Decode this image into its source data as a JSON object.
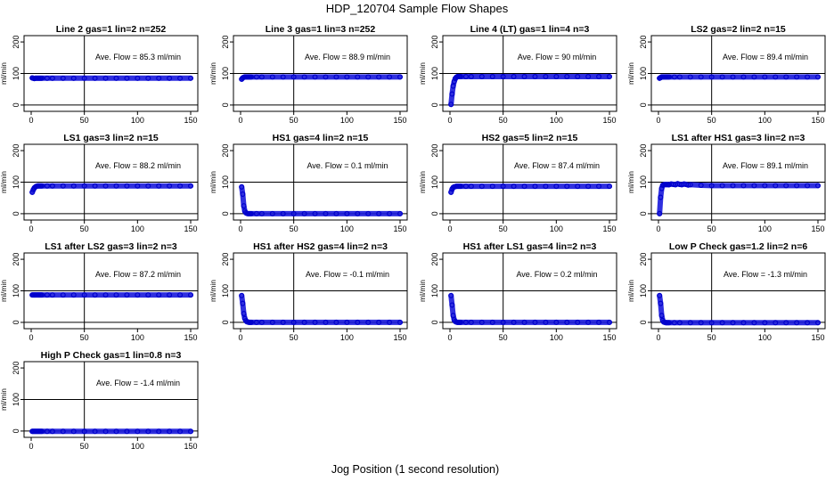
{
  "figure": {
    "title": "HDP_120704  Sample Flow Shapes",
    "xlabel": "Jog Position (1 second resolution)"
  },
  "chart_data": [
    {
      "type": "scatter",
      "title": "Line 2 gas=1 lin=2 n=252",
      "ylabel": "ml/min",
      "xlim": [
        0,
        150
      ],
      "ylim": [
        -20,
        220
      ],
      "xticks": [
        0,
        50,
        100,
        150
      ],
      "yticks": [
        0,
        100,
        200
      ],
      "hlines": [
        0,
        100
      ],
      "vline": 50,
      "annotation": "Ave. Flow =  85.3  ml/min",
      "x": [
        1,
        2,
        3,
        4,
        5,
        6,
        7,
        8,
        9,
        10,
        15,
        20,
        30,
        40,
        50,
        60,
        70,
        80,
        90,
        100,
        110,
        120,
        130,
        140,
        150
      ],
      "y": [
        86,
        85,
        84,
        85,
        85,
        85,
        85,
        85,
        85,
        85,
        85,
        85,
        85,
        85,
        85,
        85,
        85,
        85,
        85,
        85,
        85,
        85,
        85,
        85,
        85
      ]
    },
    {
      "type": "scatter",
      "title": "Line 3 gas=1 lin=3 n=252",
      "ylabel": "ml/min",
      "xlim": [
        0,
        150
      ],
      "ylim": [
        -20,
        220
      ],
      "xticks": [
        0,
        50,
        100,
        150
      ],
      "yticks": [
        0,
        100,
        200
      ],
      "hlines": [
        0,
        100
      ],
      "vline": 50,
      "annotation": "Ave. Flow =  88.9  ml/min",
      "x": [
        1,
        2,
        3,
        4,
        5,
        6,
        7,
        8,
        9,
        10,
        15,
        20,
        30,
        40,
        50,
        60,
        70,
        80,
        90,
        100,
        110,
        120,
        130,
        140,
        150
      ],
      "y": [
        82,
        86,
        88,
        89,
        89,
        89,
        89,
        89,
        89,
        89,
        89,
        89,
        89,
        89,
        89,
        89,
        89,
        89,
        89,
        89,
        89,
        89,
        89,
        89,
        89
      ]
    },
    {
      "type": "scatter",
      "title": "Line 4 (LT) gas=1 lin=4 n=3",
      "ylabel": "ml/min",
      "xlim": [
        0,
        150
      ],
      "ylim": [
        -20,
        220
      ],
      "xticks": [
        0,
        50,
        100,
        150
      ],
      "yticks": [
        0,
        100,
        200
      ],
      "hlines": [
        0,
        100
      ],
      "vline": 50,
      "annotation": "Ave. Flow =  90  ml/min",
      "x": [
        1,
        2,
        3,
        4,
        5,
        6,
        7,
        8,
        9,
        10,
        15,
        20,
        30,
        40,
        50,
        60,
        70,
        80,
        90,
        100,
        110,
        120,
        130,
        140,
        150
      ],
      "y": [
        2,
        35,
        60,
        75,
        84,
        88,
        90,
        90,
        90,
        90,
        90,
        90,
        90,
        90,
        90,
        90,
        90,
        90,
        90,
        90,
        90,
        90,
        90,
        90,
        90
      ]
    },
    {
      "type": "scatter",
      "title": "LS2 gas=2 lin=2 n=15",
      "ylabel": "ml/min",
      "xlim": [
        0,
        150
      ],
      "ylim": [
        -20,
        220
      ],
      "xticks": [
        0,
        50,
        100,
        150
      ],
      "yticks": [
        0,
        100,
        200
      ],
      "hlines": [
        0,
        100
      ],
      "vline": 50,
      "annotation": "Ave. Flow =  89.4  ml/min",
      "x": [
        1,
        2,
        3,
        4,
        5,
        6,
        7,
        8,
        9,
        10,
        15,
        20,
        30,
        40,
        50,
        60,
        70,
        80,
        90,
        100,
        110,
        120,
        130,
        140,
        150
      ],
      "y": [
        85,
        87,
        89,
        89,
        89,
        89,
        89,
        89,
        89,
        89,
        89,
        89,
        89,
        89,
        89,
        89,
        89,
        89,
        89,
        89,
        89,
        89,
        89,
        89,
        89
      ]
    },
    {
      "type": "scatter",
      "title": "LS1 gas=3 lin=2 n=15",
      "ylabel": "ml/min",
      "xlim": [
        0,
        150
      ],
      "ylim": [
        -20,
        220
      ],
      "xticks": [
        0,
        50,
        100,
        150
      ],
      "yticks": [
        0,
        100,
        200
      ],
      "hlines": [
        0,
        100
      ],
      "vline": 50,
      "annotation": "Ave. Flow =  88.2  ml/min",
      "x": [
        1,
        2,
        3,
        4,
        5,
        6,
        7,
        8,
        9,
        10,
        15,
        20,
        30,
        40,
        50,
        60,
        70,
        80,
        90,
        100,
        110,
        120,
        130,
        140,
        150
      ],
      "y": [
        68,
        76,
        82,
        85,
        87,
        88,
        88,
        88,
        88,
        88,
        88,
        88,
        88,
        88,
        88,
        88,
        88,
        88,
        88,
        88,
        88,
        88,
        88,
        88,
        88
      ]
    },
    {
      "type": "scatter",
      "title": "HS1 gas=4 lin=2 n=15",
      "ylabel": "ml/min",
      "xlim": [
        0,
        150
      ],
      "ylim": [
        -20,
        220
      ],
      "xticks": [
        0,
        50,
        100,
        150
      ],
      "yticks": [
        0,
        100,
        200
      ],
      "hlines": [
        0,
        100
      ],
      "vline": 50,
      "annotation": "Ave. Flow =  0.1  ml/min",
      "x": [
        1,
        2,
        3,
        4,
        5,
        6,
        7,
        8,
        9,
        10,
        15,
        20,
        30,
        40,
        50,
        60,
        70,
        80,
        90,
        100,
        110,
        120,
        130,
        140,
        150
      ],
      "y": [
        85,
        62,
        25,
        8,
        3,
        1,
        0,
        0,
        0,
        0,
        0,
        0,
        0,
        0,
        0,
        0,
        0,
        0,
        0,
        0,
        0,
        0,
        0,
        0,
        0
      ]
    },
    {
      "type": "scatter",
      "title": "HS2 gas=5 lin=2 n=15",
      "ylabel": "ml/min",
      "xlim": [
        0,
        150
      ],
      "ylim": [
        -20,
        220
      ],
      "xticks": [
        0,
        50,
        100,
        150
      ],
      "yticks": [
        0,
        100,
        200
      ],
      "hlines": [
        0,
        100
      ],
      "vline": 50,
      "annotation": "Ave. Flow =  87.4  ml/min",
      "x": [
        1,
        2,
        3,
        4,
        5,
        6,
        7,
        8,
        9,
        10,
        15,
        20,
        30,
        40,
        50,
        60,
        70,
        80,
        90,
        100,
        110,
        120,
        130,
        140,
        150
      ],
      "y": [
        68,
        78,
        83,
        85,
        86,
        87,
        87,
        87,
        87,
        87,
        87,
        87,
        87,
        87,
        87,
        87,
        87,
        87,
        87,
        87,
        87,
        87,
        87,
        87,
        87
      ]
    },
    {
      "type": "scatter",
      "title": "LS1 after HS1 gas=3 lin=2 n=3",
      "ylabel": "ml/min",
      "xlim": [
        0,
        150
      ],
      "ylim": [
        -20,
        220
      ],
      "xticks": [
        0,
        50,
        100,
        150
      ],
      "yticks": [
        0,
        100,
        200
      ],
      "hlines": [
        0,
        100
      ],
      "vline": 50,
      "annotation": "Ave. Flow =  89.1  ml/min",
      "x": [
        1,
        2,
        3,
        4,
        5,
        6,
        7,
        8,
        9,
        10,
        12,
        14,
        16,
        18,
        20,
        22,
        24,
        26,
        28,
        30,
        40,
        50,
        60,
        70,
        80,
        90,
        100,
        110,
        120,
        130,
        140,
        150
      ],
      "y": [
        0,
        52,
        80,
        90,
        92,
        93,
        92,
        93,
        92,
        92,
        94,
        93,
        92,
        95,
        93,
        92,
        94,
        93,
        91,
        92,
        90,
        89,
        89,
        89,
        89,
        89,
        89,
        89,
        89,
        89,
        89,
        89
      ]
    },
    {
      "type": "scatter",
      "title": "LS1 after LS2 gas=3 lin=2 n=3",
      "ylabel": "ml/min",
      "xlim": [
        0,
        150
      ],
      "ylim": [
        -20,
        220
      ],
      "xticks": [
        0,
        50,
        100,
        150
      ],
      "yticks": [
        0,
        100,
        200
      ],
      "hlines": [
        0,
        100
      ],
      "vline": 50,
      "annotation": "Ave. Flow =  87.2  ml/min",
      "x": [
        1,
        2,
        3,
        4,
        5,
        6,
        7,
        8,
        9,
        10,
        15,
        20,
        30,
        40,
        50,
        60,
        70,
        80,
        90,
        100,
        110,
        120,
        130,
        140,
        150
      ],
      "y": [
        87,
        87,
        87,
        87,
        87,
        87,
        87,
        87,
        87,
        87,
        87,
        87,
        87,
        87,
        87,
        87,
        87,
        87,
        87,
        87,
        87,
        87,
        87,
        87,
        87
      ]
    },
    {
      "type": "scatter",
      "title": "HS1 after HS2 gas=4 lin=2 n=3",
      "ylabel": "ml/min",
      "xlim": [
        0,
        150
      ],
      "ylim": [
        -20,
        220
      ],
      "xticks": [
        0,
        50,
        100,
        150
      ],
      "yticks": [
        0,
        100,
        200
      ],
      "hlines": [
        0,
        100
      ],
      "vline": 50,
      "annotation": "Ave. Flow =  -0.1  ml/min",
      "x": [
        1,
        2,
        3,
        4,
        5,
        6,
        7,
        8,
        9,
        10,
        15,
        20,
        30,
        40,
        50,
        60,
        70,
        80,
        90,
        100,
        110,
        120,
        130,
        140,
        150
      ],
      "y": [
        85,
        60,
        28,
        12,
        5,
        2,
        1,
        0,
        0,
        0,
        0,
        0,
        0,
        0,
        0,
        0,
        0,
        0,
        0,
        0,
        0,
        0,
        0,
        0,
        0
      ]
    },
    {
      "type": "scatter",
      "title": "HS1 after LS1 gas=4 lin=2 n=3",
      "ylabel": "ml/min",
      "xlim": [
        0,
        150
      ],
      "ylim": [
        -20,
        220
      ],
      "xticks": [
        0,
        50,
        100,
        150
      ],
      "yticks": [
        0,
        100,
        200
      ],
      "hlines": [
        0,
        100
      ],
      "vline": 50,
      "annotation": "Ave. Flow =  0.2  ml/min",
      "x": [
        1,
        2,
        3,
        4,
        5,
        6,
        7,
        8,
        9,
        10,
        15,
        20,
        30,
        40,
        50,
        60,
        70,
        80,
        90,
        100,
        110,
        120,
        130,
        140,
        150
      ],
      "y": [
        85,
        55,
        22,
        8,
        3,
        1,
        0,
        0,
        0,
        0,
        0,
        0,
        0,
        0,
        0,
        0,
        0,
        0,
        0,
        0,
        0,
        0,
        0,
        0,
        0
      ]
    },
    {
      "type": "scatter",
      "title": "Low P Check gas=1.2 lin=2 n=6",
      "ylabel": "ml/min",
      "xlim": [
        0,
        150
      ],
      "ylim": [
        -20,
        220
      ],
      "xticks": [
        0,
        50,
        100,
        150
      ],
      "yticks": [
        0,
        100,
        200
      ],
      "hlines": [
        0,
        100
      ],
      "vline": 50,
      "annotation": "Ave. Flow =  -1.3  ml/min",
      "x": [
        1,
        2,
        3,
        4,
        5,
        6,
        7,
        8,
        9,
        10,
        15,
        20,
        30,
        40,
        50,
        60,
        70,
        80,
        90,
        100,
        110,
        120,
        130,
        140,
        150
      ],
      "y": [
        85,
        60,
        22,
        6,
        1,
        0,
        -1,
        -1,
        -1,
        -1,
        -1,
        -1,
        -1,
        -1,
        -1,
        -1,
        -1,
        -1,
        -1,
        -1,
        -1,
        -1,
        -1,
        -1,
        -1
      ]
    },
    {
      "type": "scatter",
      "title": "High P Check gas=1 lin=0.8 n=3",
      "ylabel": "ml/min",
      "xlim": [
        0,
        150
      ],
      "ylim": [
        -20,
        220
      ],
      "xticks": [
        0,
        50,
        100,
        150
      ],
      "yticks": [
        0,
        100,
        200
      ],
      "hlines": [
        0,
        100
      ],
      "vline": 50,
      "annotation": "Ave. Flow =  -1.4  ml/min",
      "x": [
        1,
        2,
        3,
        4,
        5,
        6,
        7,
        8,
        9,
        10,
        15,
        20,
        30,
        40,
        50,
        60,
        70,
        80,
        90,
        100,
        110,
        120,
        130,
        140,
        150
      ],
      "y": [
        -1,
        -1,
        -1,
        -1,
        -1,
        -1,
        -1,
        -1,
        -1,
        -1,
        -1,
        -1,
        -1,
        -1,
        -1,
        -1,
        -1,
        -1,
        -1,
        -1,
        -1,
        -1,
        -1,
        -1,
        -1
      ]
    }
  ]
}
